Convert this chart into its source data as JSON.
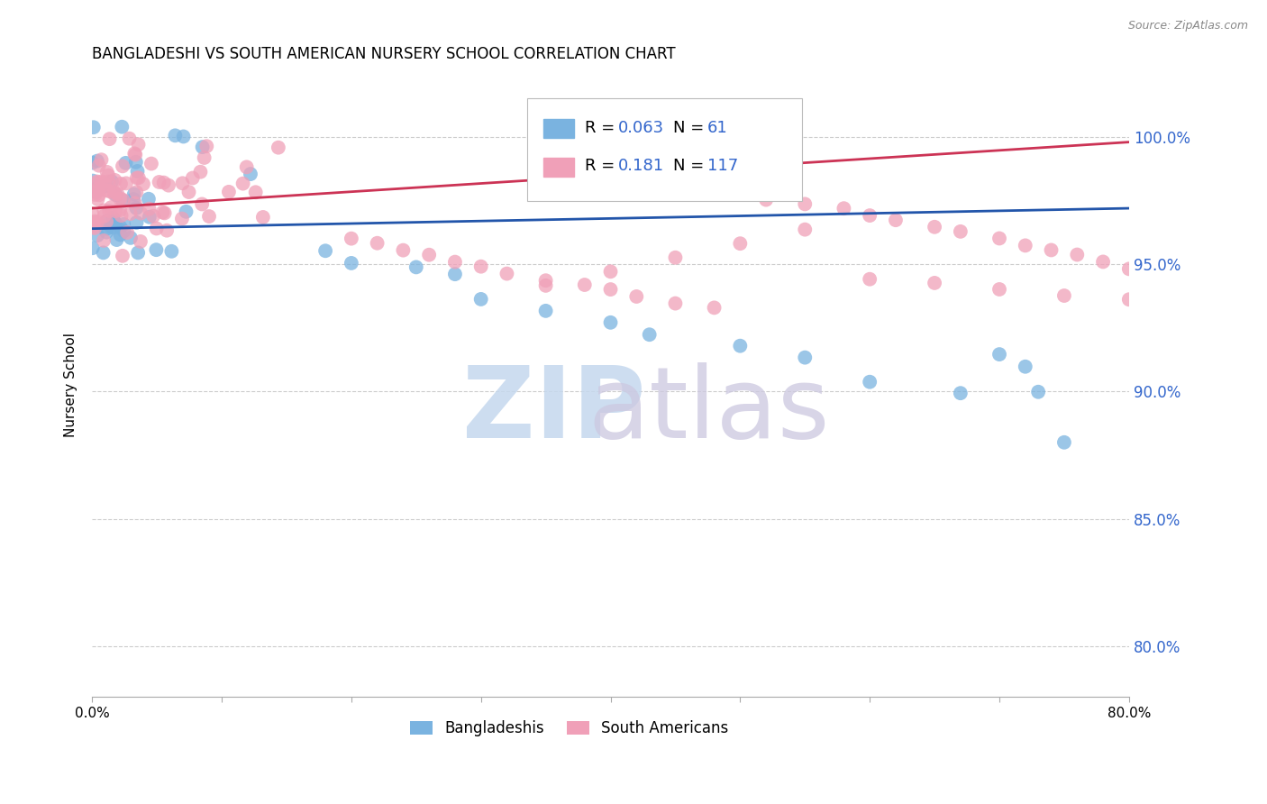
{
  "title": "BANGLADESHI VS SOUTH AMERICAN NURSERY SCHOOL CORRELATION CHART",
  "source": "Source: ZipAtlas.com",
  "ylabel": "Nursery School",
  "ytick_labels": [
    "80.0%",
    "85.0%",
    "90.0%",
    "95.0%",
    "100.0%"
  ],
  "ytick_values": [
    0.8,
    0.85,
    0.9,
    0.95,
    1.0
  ],
  "xlim": [
    0.0,
    0.8
  ],
  "ylim": [
    0.78,
    1.025
  ],
  "blue_color": "#7ab3e0",
  "pink_color": "#f0a0b8",
  "blue_line_color": "#2255aa",
  "pink_line_color": "#cc3355",
  "legend_blue_R": "0.063",
  "legend_blue_N": "61",
  "legend_pink_R": "0.181",
  "legend_pink_N": "117",
  "grid_color": "#cccccc",
  "watermark_zip_color": "#c5d8ee",
  "watermark_atlas_color": "#ccc8e0"
}
